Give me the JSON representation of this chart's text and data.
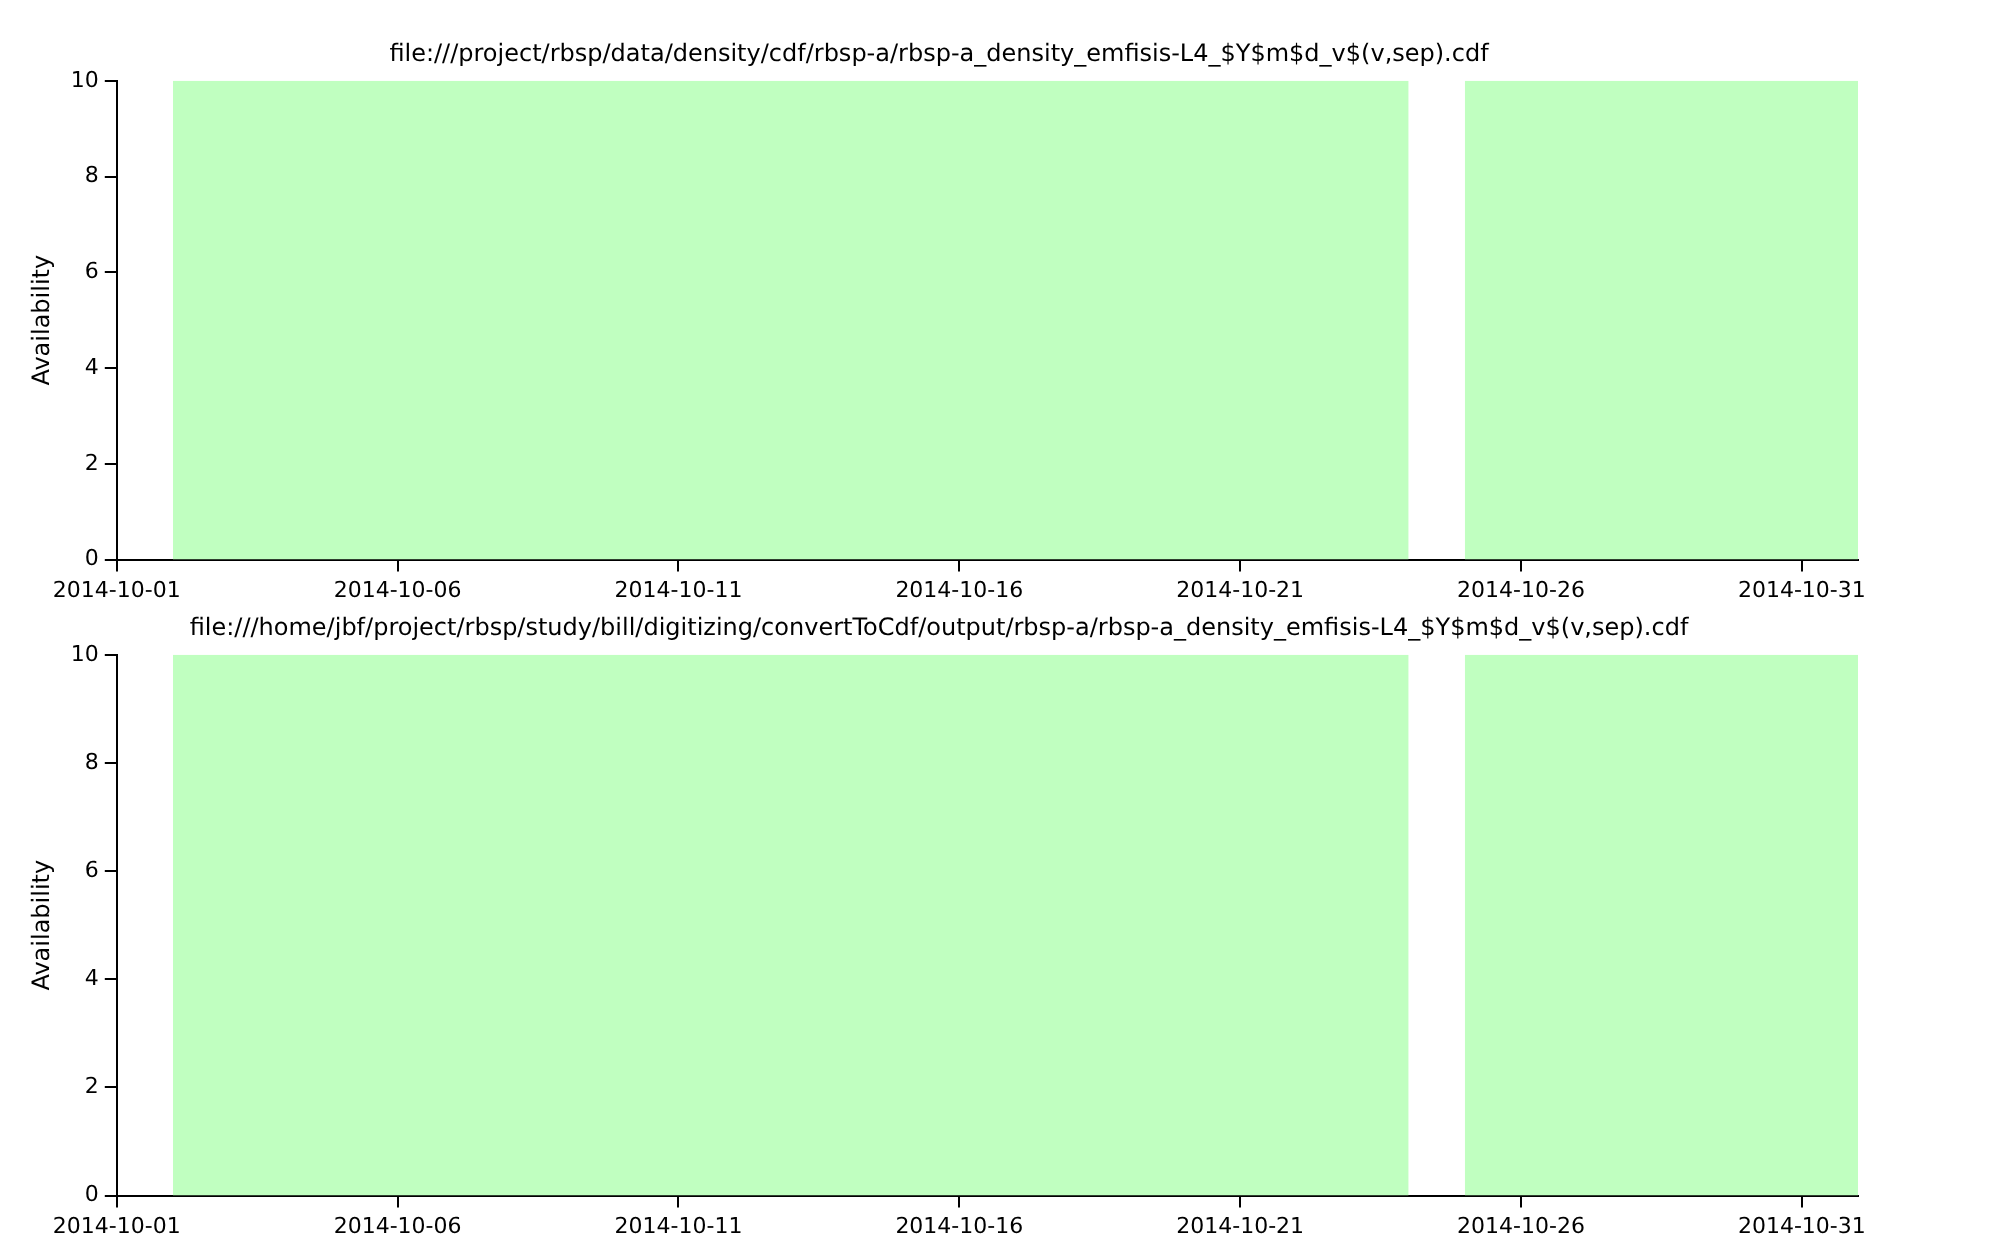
{
  "chart_data": [
    {
      "type": "area",
      "title": "file:///project/rbsp/data/density/cdf/rbsp-a/rbsp-a_density_emfisis-L4_$Y$m$d_v$(v,sep).cdf",
      "ylabel": "Availability",
      "grid": false,
      "legend": false,
      "series": [
        {
          "color": "#c0ffc0",
          "x": [
            "2014-10-02",
            "2014-10-24",
            "2014-10-24T12:00",
            "2014-10-25",
            "2014-11-01"
          ],
          "values": [
            10,
            10,
            null,
            10,
            10
          ]
        }
      ],
      "xlim": [
        "2014-10-01",
        "2014-11-01"
      ],
      "xticks": [
        {
          "value": "2014-10-01",
          "label": "2014-10-01"
        },
        {
          "value": "2014-10-06",
          "label": "2014-10-06"
        },
        {
          "value": "2014-10-11",
          "label": "2014-10-11"
        },
        {
          "value": "2014-10-16",
          "label": "2014-10-16"
        },
        {
          "value": "2014-10-21",
          "label": "2014-10-21"
        },
        {
          "value": "2014-10-26",
          "label": "2014-10-26"
        },
        {
          "value": "2014-10-31",
          "label": "2014-10-31"
        }
      ],
      "ylim": [
        0,
        10
      ],
      "yticks": [
        0,
        2,
        4,
        6,
        8,
        10
      ]
    },
    {
      "type": "area",
      "title": "file:///home/jbf/project/rbsp/study/bill/digitizing/convertToCdf/output/rbsp-a/rbsp-a_density_emfisis-L4_$Y$m$d_v$(v,sep).cdf",
      "ylabel": "Availability",
      "grid": false,
      "legend": false,
      "series": [
        {
          "color": "#c0ffc0",
          "x": [
            "2014-10-02",
            "2014-10-24",
            "2014-10-24T12:00",
            "2014-10-25",
            "2014-11-01"
          ],
          "values": [
            10,
            10,
            null,
            10,
            10
          ]
        }
      ],
      "xlim": [
        "2014-10-01",
        "2014-11-01"
      ],
      "xticks": [
        {
          "value": "2014-10-01",
          "label": "2014-10-01"
        },
        {
          "value": "2014-10-06",
          "label": "2014-10-06"
        },
        {
          "value": "2014-10-11",
          "label": "2014-10-11"
        },
        {
          "value": "2014-10-16",
          "label": "2014-10-16"
        },
        {
          "value": "2014-10-21",
          "label": "2014-10-21"
        },
        {
          "value": "2014-10-26",
          "label": "2014-10-26"
        },
        {
          "value": "2014-10-31",
          "label": "2014-10-31"
        }
      ],
      "ylim": [
        0,
        10
      ],
      "yticks": [
        0,
        2,
        4,
        6,
        8,
        10
      ]
    }
  ]
}
